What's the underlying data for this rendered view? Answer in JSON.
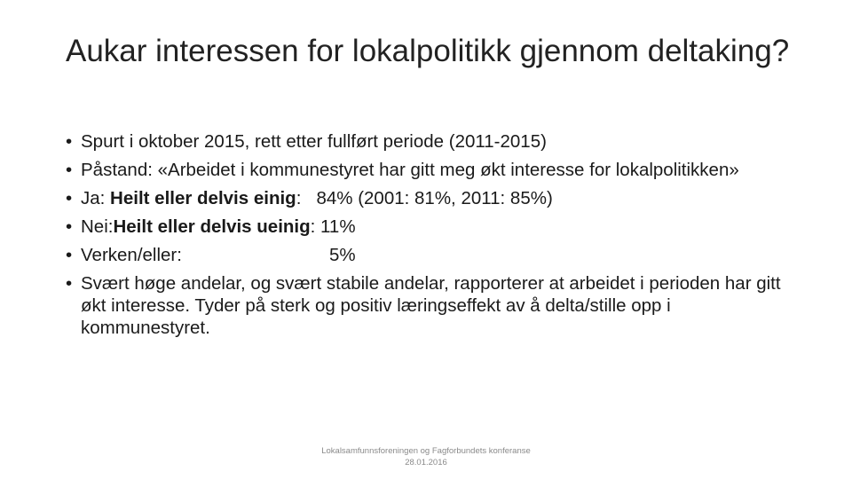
{
  "slide": {
    "title": "Aukar interessen for lokalpolitikk gjennom deltaking?",
    "bullet_char": "•",
    "bullets": {
      "b1": {
        "text": "Spurt i oktober 2015, rett etter fullført periode (2011-2015)"
      },
      "b2": {
        "text": "Påstand: «Arbeidet i kommunestyret har gitt meg økt interesse for lokalpolitikken»"
      },
      "b3": {
        "prefix": "Ja: ",
        "bold": "Heilt eller delvis einig",
        "suffix": ":   84% (2001: 81%, 2011: 85%)"
      },
      "b4": {
        "prefix": "Nei:",
        "bold": "Heilt eller delvis ueinig",
        "suffix": ": 11%"
      },
      "b5": {
        "prefix": "Verken/eller:",
        "value": "5%"
      },
      "b6": {
        "text": "Svært høge andelar, og svært stabile andelar, rapporterer at arbeidet i perioden har gitt økt interesse. Tyder på sterk og positiv læringseffekt av å delta/stille opp i kommunestyret."
      }
    },
    "footer": {
      "line1": "Lokalsamfunnsforeningen og Fagforbundets konferanse",
      "line2": "28.01.2016"
    }
  }
}
